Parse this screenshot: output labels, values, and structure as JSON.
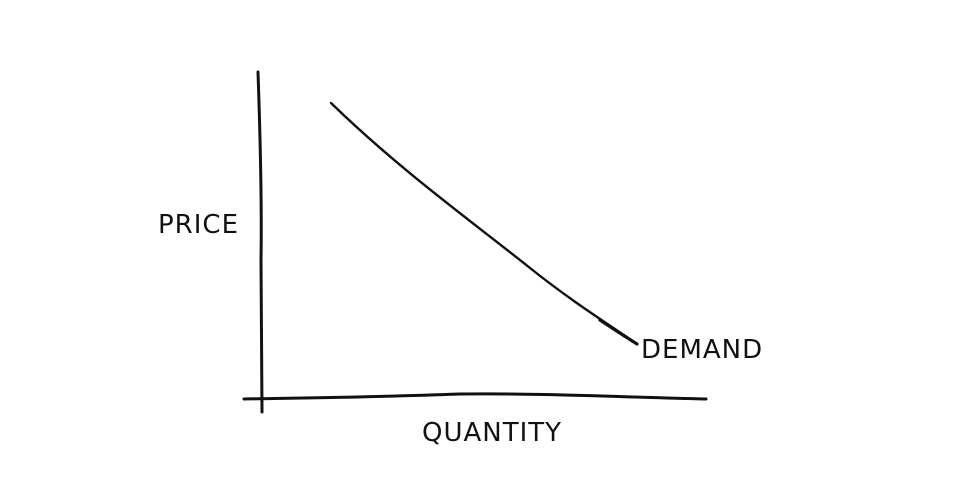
{
  "chart_data": {
    "type": "line",
    "title": "",
    "xlabel": "QUANTITY",
    "ylabel": "PRICE",
    "grid": false,
    "ticks": false,
    "series": [
      {
        "name": "DEMAND",
        "shape": "downward-sloping curve"
      }
    ]
  }
}
